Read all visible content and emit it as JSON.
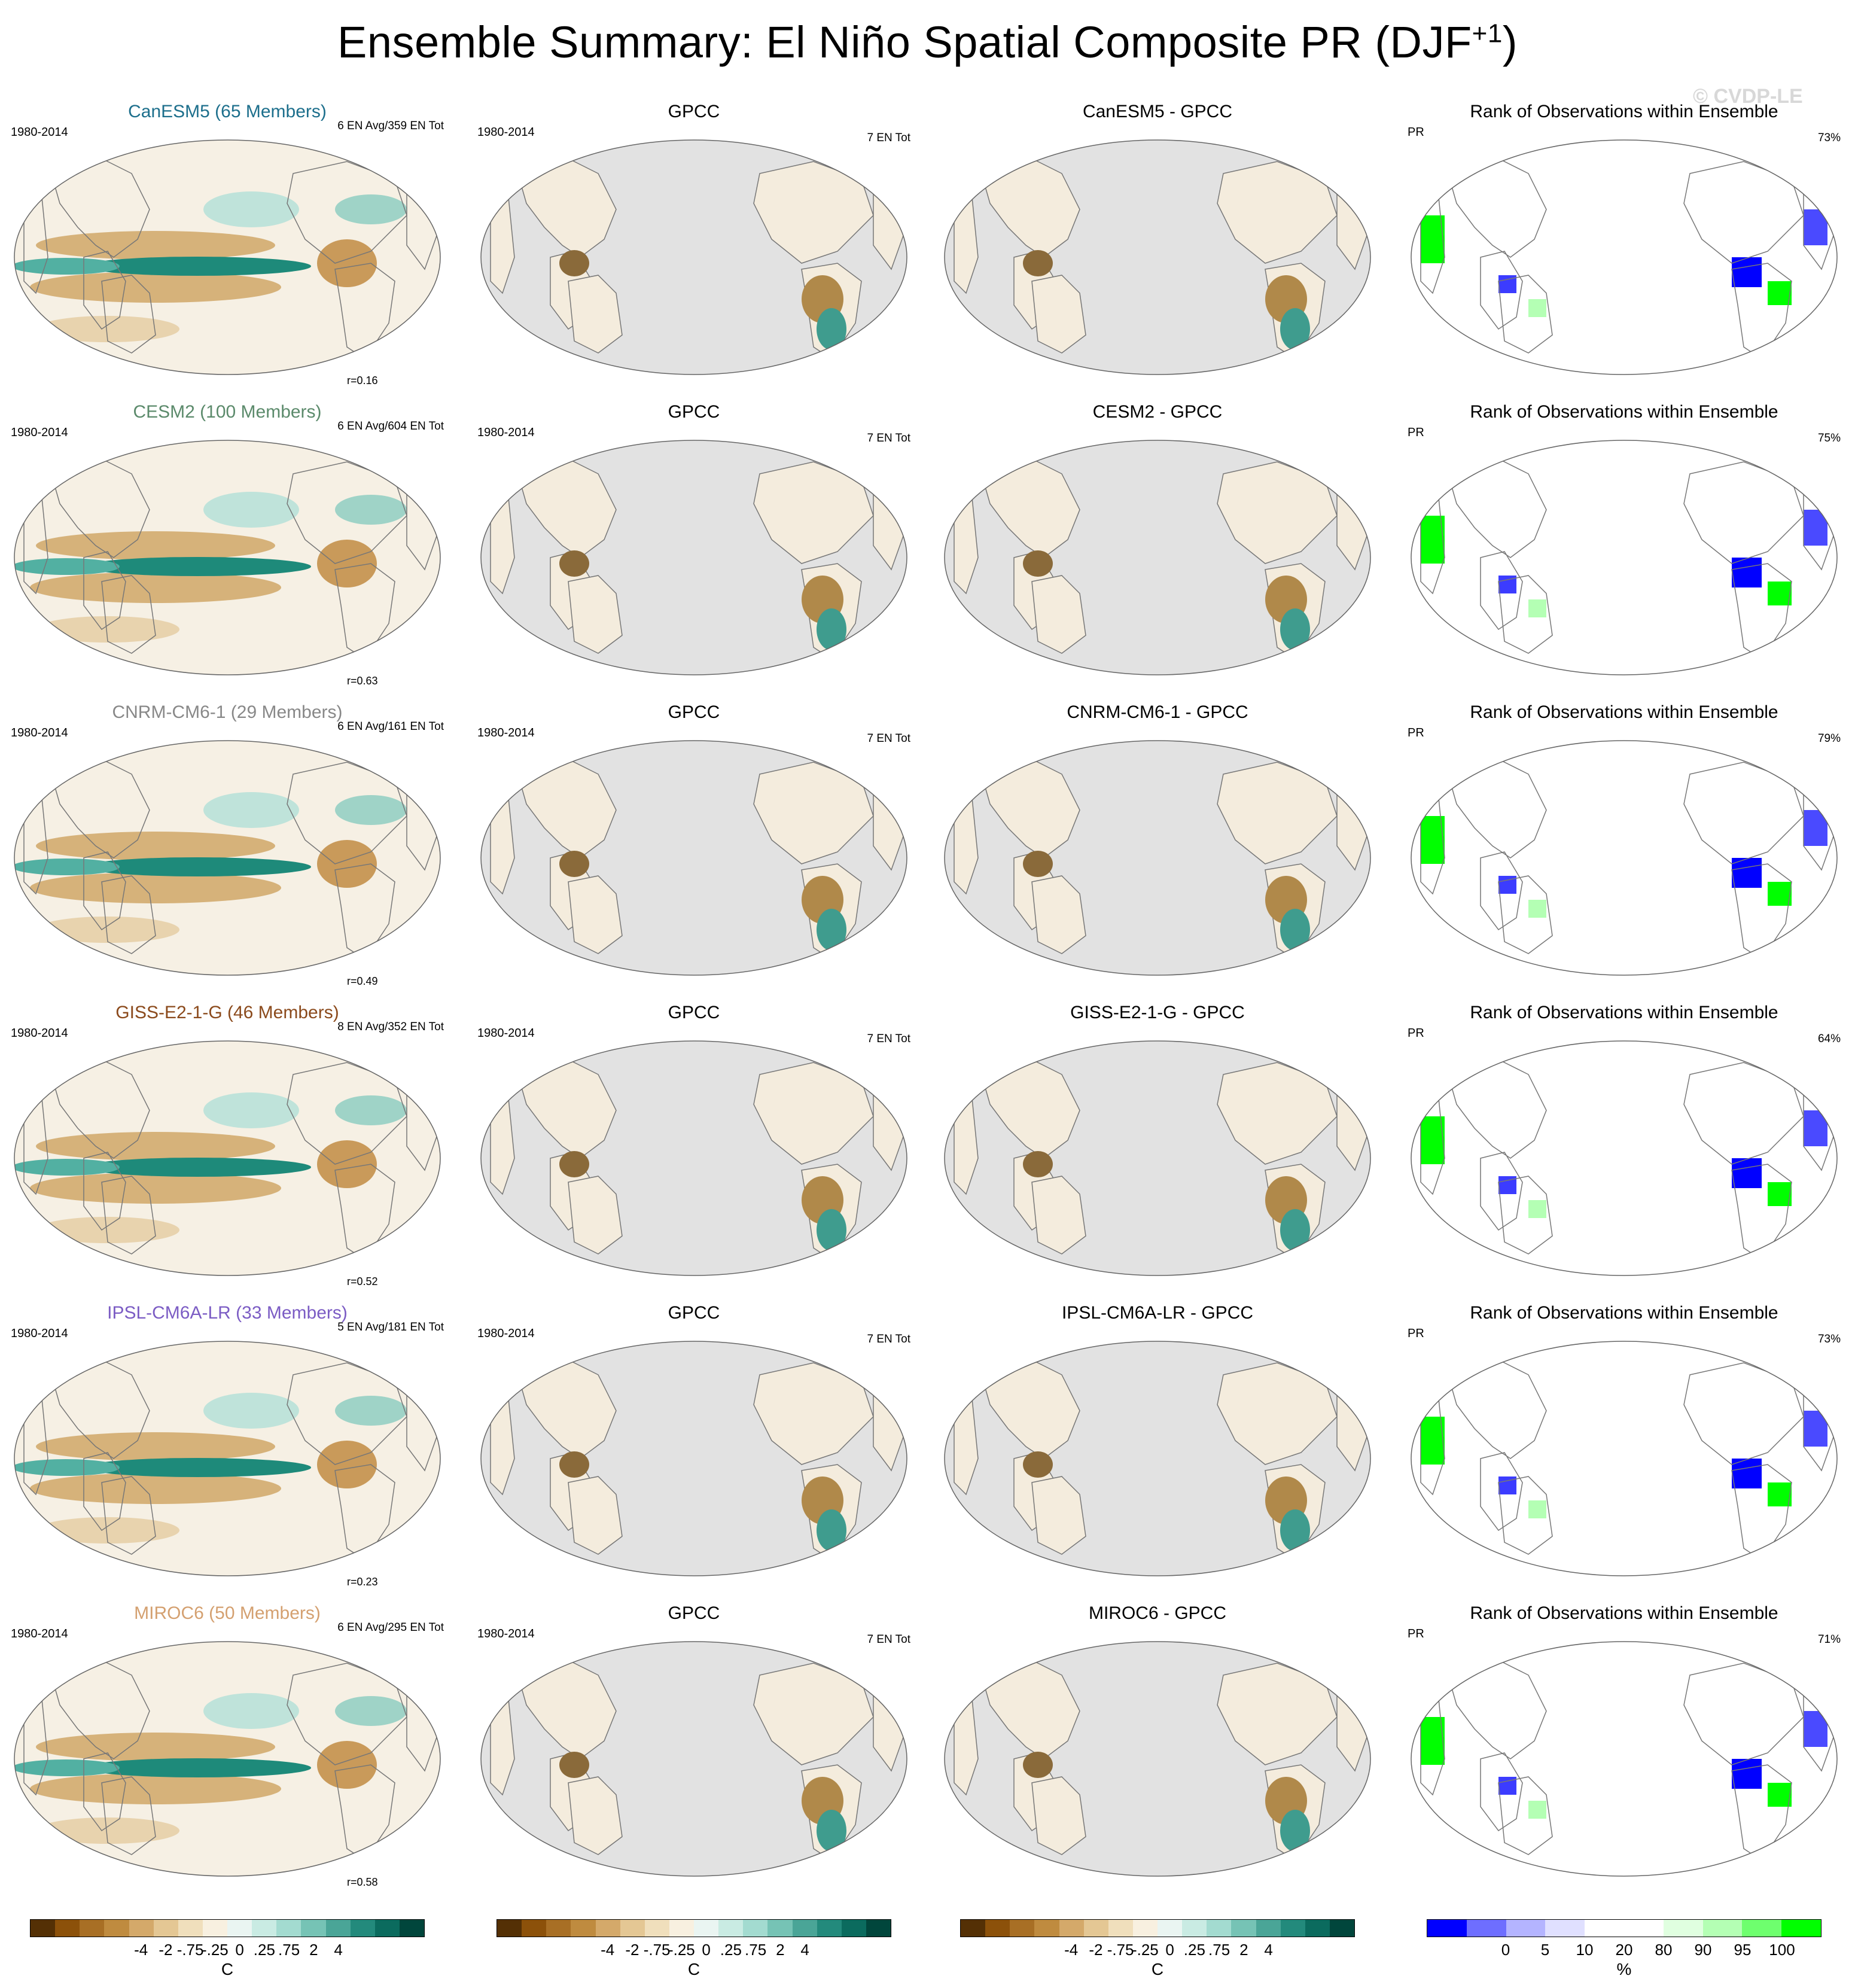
{
  "title_main": "Ensemble Summary: El Niño Spatial Composite PR (DJF",
  "title_sup": "+1",
  "title_end": ")",
  "watermark": "© CVDP-LE",
  "rows": [
    {
      "model": "CanESM5 (65 Members)",
      "model_color": "#1d6f8c",
      "period": "1980-2014",
      "en_info": "6 EN Avg/359 EN Tot",
      "r": "r=0.16",
      "gpcc": "GPCC",
      "gpcc_period": "1980-2014",
      "gpcc_en": "7 EN Tot",
      "diff": "CanESM5 - GPCC",
      "rank": "Rank of Observations within Ensemble",
      "rank_var": "PR",
      "rank_pct": "73%"
    },
    {
      "model": "CESM2 (100 Members)",
      "model_color": "#5b8a6b",
      "period": "1980-2014",
      "en_info": "6 EN Avg/604 EN Tot",
      "r": "r=0.63",
      "gpcc": "GPCC",
      "gpcc_period": "1980-2014",
      "gpcc_en": "7 EN Tot",
      "diff": "CESM2 - GPCC",
      "rank": "Rank of Observations within Ensemble",
      "rank_var": "PR",
      "rank_pct": "75%"
    },
    {
      "model": "CNRM-CM6-1 (29 Members)",
      "model_color": "#888888",
      "period": "1980-2014",
      "en_info": "6 EN Avg/161 EN Tot",
      "r": "r=0.49",
      "gpcc": "GPCC",
      "gpcc_period": "1980-2014",
      "gpcc_en": "7 EN Tot",
      "diff": "CNRM-CM6-1 - GPCC",
      "rank": "Rank of Observations within Ensemble",
      "rank_var": "PR",
      "rank_pct": "79%"
    },
    {
      "model": "GISS-E2-1-G (46 Members)",
      "model_color": "#8b4a1c",
      "period": "1980-2014",
      "en_info": "8 EN Avg/352 EN Tot",
      "r": "r=0.52",
      "gpcc": "GPCC",
      "gpcc_period": "1980-2014",
      "gpcc_en": "7 EN Tot",
      "diff": "GISS-E2-1-G - GPCC",
      "rank": "Rank of Observations within Ensemble",
      "rank_var": "PR",
      "rank_pct": "64%"
    },
    {
      "model": "IPSL-CM6A-LR (33 Members)",
      "model_color": "#7b5cc4",
      "period": "1980-2014",
      "en_info": "5 EN Avg/181 EN Tot",
      "r": "r=0.23",
      "gpcc": "GPCC",
      "gpcc_period": "1980-2014",
      "gpcc_en": "7 EN Tot",
      "diff": "IPSL-CM6A-LR - GPCC",
      "rank": "Rank of Observations within Ensemble",
      "rank_var": "PR",
      "rank_pct": "73%"
    },
    {
      "model": "MIROC6 (50 Members)",
      "model_color": "#d4a070",
      "period": "1980-2014",
      "en_info": "6 EN Avg/295 EN Tot",
      "r": "r=0.58",
      "gpcc": "GPCC",
      "gpcc_period": "1980-2014",
      "gpcc_en": "7 EN Tot",
      "diff": "MIROC6 - GPCC",
      "rank": "Rank of Observations within Ensemble",
      "rank_var": "PR",
      "rank_pct": "71%"
    }
  ],
  "colorbars": [
    {
      "ticks": [
        "-4",
        "-2",
        "-.75",
        "-.25",
        "0",
        ".25",
        ".75",
        "2",
        "4"
      ],
      "unit": "C",
      "colors": [
        "#543005",
        "#8c510a",
        "#a86f25",
        "#bf8b3f",
        "#d4a96a",
        "#e4c794",
        "#f0dfbc",
        "#f8f0e0",
        "#eaf5f2",
        "#c9ebe3",
        "#a3dbd0",
        "#76c3b5",
        "#4aa597",
        "#238a7c",
        "#0b6b5e",
        "#01463c"
      ]
    },
    {
      "ticks": [
        "-4",
        "-2",
        "-.75",
        "-.25",
        "0",
        ".25",
        ".75",
        "2",
        "4"
      ],
      "unit": "C",
      "colors": [
        "#543005",
        "#8c510a",
        "#a86f25",
        "#bf8b3f",
        "#d4a96a",
        "#e4c794",
        "#f0dfbc",
        "#f8f0e0",
        "#eaf5f2",
        "#c9ebe3",
        "#a3dbd0",
        "#76c3b5",
        "#4aa597",
        "#238a7c",
        "#0b6b5e",
        "#01463c"
      ]
    },
    {
      "ticks": [
        "-4",
        "-2",
        "-.75",
        "-.25",
        "0",
        ".25",
        ".75",
        "2",
        "4"
      ],
      "unit": "C",
      "colors": [
        "#543005",
        "#8c510a",
        "#a86f25",
        "#bf8b3f",
        "#d4a96a",
        "#e4c794",
        "#f0dfbc",
        "#f8f0e0",
        "#eaf5f2",
        "#c9ebe3",
        "#a3dbd0",
        "#76c3b5",
        "#4aa597",
        "#238a7c",
        "#0b6b5e",
        "#01463c"
      ]
    },
    {
      "ticks": [
        "0",
        "5",
        "10",
        "20",
        "80",
        "90",
        "95",
        "100"
      ],
      "unit": "%",
      "colors": [
        "#0000ff",
        "#6e6eff",
        "#b4b4ff",
        "#e0e0ff",
        "#ffffff",
        "#ffffff",
        "#e0ffe0",
        "#b4ffb4",
        "#6eff6e",
        "#00ff00"
      ]
    }
  ]
}
